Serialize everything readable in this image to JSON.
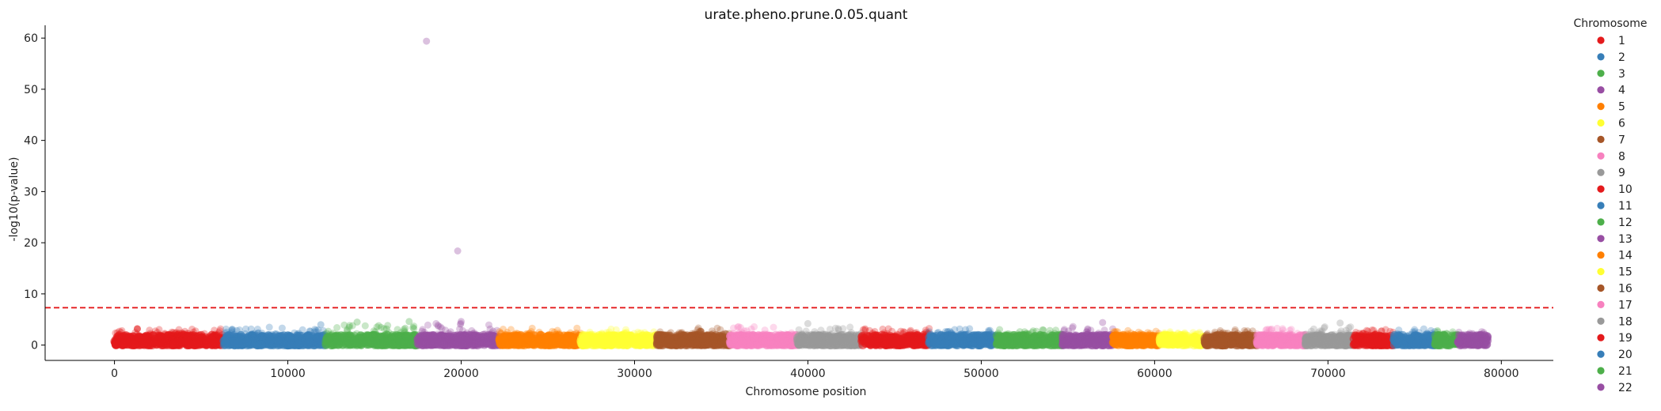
{
  "chart_data": {
    "type": "scatter",
    "title": "urate.pheno.prune.0.05.quant",
    "xlabel": "Chromosome position",
    "ylabel": "-log10(p-value)",
    "xlim": [
      -4000,
      83000
    ],
    "ylim": [
      -3,
      62.5
    ],
    "xticks": [
      0,
      10000,
      20000,
      30000,
      40000,
      50000,
      60000,
      70000,
      80000
    ],
    "yticks": [
      0,
      10,
      20,
      30,
      40,
      50,
      60
    ],
    "threshold": {
      "y": 7.3,
      "color": "#e41a1c",
      "style": "dashed"
    },
    "grid": false,
    "legend": {
      "title": "Chromosome",
      "placement": "outside-right"
    },
    "series": [
      {
        "name": "1",
        "color": "#e41a1c",
        "x_range": [
          0,
          6300
        ],
        "max_y": 3.7
      },
      {
        "name": "2",
        "color": "#377eb8",
        "x_range": [
          6300,
          12200
        ],
        "max_y": 4.0
      },
      {
        "name": "3",
        "color": "#4daf4a",
        "x_range": [
          12200,
          17500
        ],
        "max_y": 4.6
      },
      {
        "name": "4",
        "color": "#984ea3",
        "x_range": [
          17500,
          22200
        ],
        "max_y": 59.5
      },
      {
        "name": "5",
        "color": "#ff7f00",
        "x_range": [
          22200,
          26900
        ],
        "max_y": 3.8
      },
      {
        "name": "6",
        "color": "#ffff33",
        "x_range": [
          26900,
          31300
        ],
        "max_y": 3.5
      },
      {
        "name": "7",
        "color": "#a65628",
        "x_range": [
          31300,
          35500
        ],
        "max_y": 3.8
      },
      {
        "name": "8",
        "color": "#f781bf",
        "x_range": [
          35500,
          39400
        ],
        "max_y": 4.2
      },
      {
        "name": "9",
        "color": "#999999",
        "x_range": [
          39400,
          43100
        ],
        "max_y": 4.2
      },
      {
        "name": "10",
        "color": "#e41a1c",
        "x_range": [
          43100,
          47000
        ],
        "max_y": 3.7
      },
      {
        "name": "11",
        "color": "#377eb8",
        "x_range": [
          47000,
          50900
        ],
        "max_y": 3.6
      },
      {
        "name": "12",
        "color": "#4daf4a",
        "x_range": [
          50900,
          54700
        ],
        "max_y": 3.6
      },
      {
        "name": "13",
        "color": "#984ea3",
        "x_range": [
          54700,
          57600
        ],
        "max_y": 4.4
      },
      {
        "name": "14",
        "color": "#ff7f00",
        "x_range": [
          57600,
          60300
        ],
        "max_y": 3.2
      },
      {
        "name": "15",
        "color": "#ffff33",
        "x_range": [
          60300,
          62900
        ],
        "max_y": 3.0
      },
      {
        "name": "16",
        "color": "#a65628",
        "x_range": [
          62900,
          65900
        ],
        "max_y": 3.4
      },
      {
        "name": "17",
        "color": "#f781bf",
        "x_range": [
          65900,
          68700
        ],
        "max_y": 3.8
      },
      {
        "name": "18",
        "color": "#999999",
        "x_range": [
          68700,
          71500
        ],
        "max_y": 4.4
      },
      {
        "name": "19",
        "color": "#e41a1c",
        "x_range": [
          71500,
          73800
        ],
        "max_y": 3.4
      },
      {
        "name": "20",
        "color": "#377eb8",
        "x_range": [
          73800,
          76200
        ],
        "max_y": 3.6
      },
      {
        "name": "21",
        "color": "#4daf4a",
        "x_range": [
          76200,
          77500
        ],
        "max_y": 3.2
      },
      {
        "name": "22",
        "color": "#984ea3",
        "x_range": [
          77500,
          79200
        ],
        "max_y": 3.0
      }
    ],
    "notable_points": [
      {
        "chromosome": "4",
        "x": 18000,
        "y": 59.4
      },
      {
        "chromosome": "4",
        "x": 19800,
        "y": 18.4
      },
      {
        "chromosome": "4",
        "x": 20000,
        "y": 4.6
      },
      {
        "chromosome": "3",
        "x": 17000,
        "y": 4.6
      },
      {
        "chromosome": "3",
        "x": 14000,
        "y": 4.5
      },
      {
        "chromosome": "13",
        "x": 57000,
        "y": 4.4
      },
      {
        "chromosome": "9",
        "x": 40000,
        "y": 4.2
      },
      {
        "chromosome": "18",
        "x": 70700,
        "y": 4.3
      },
      {
        "chromosome": "2",
        "x": 11900,
        "y": 4.0
      }
    ]
  }
}
